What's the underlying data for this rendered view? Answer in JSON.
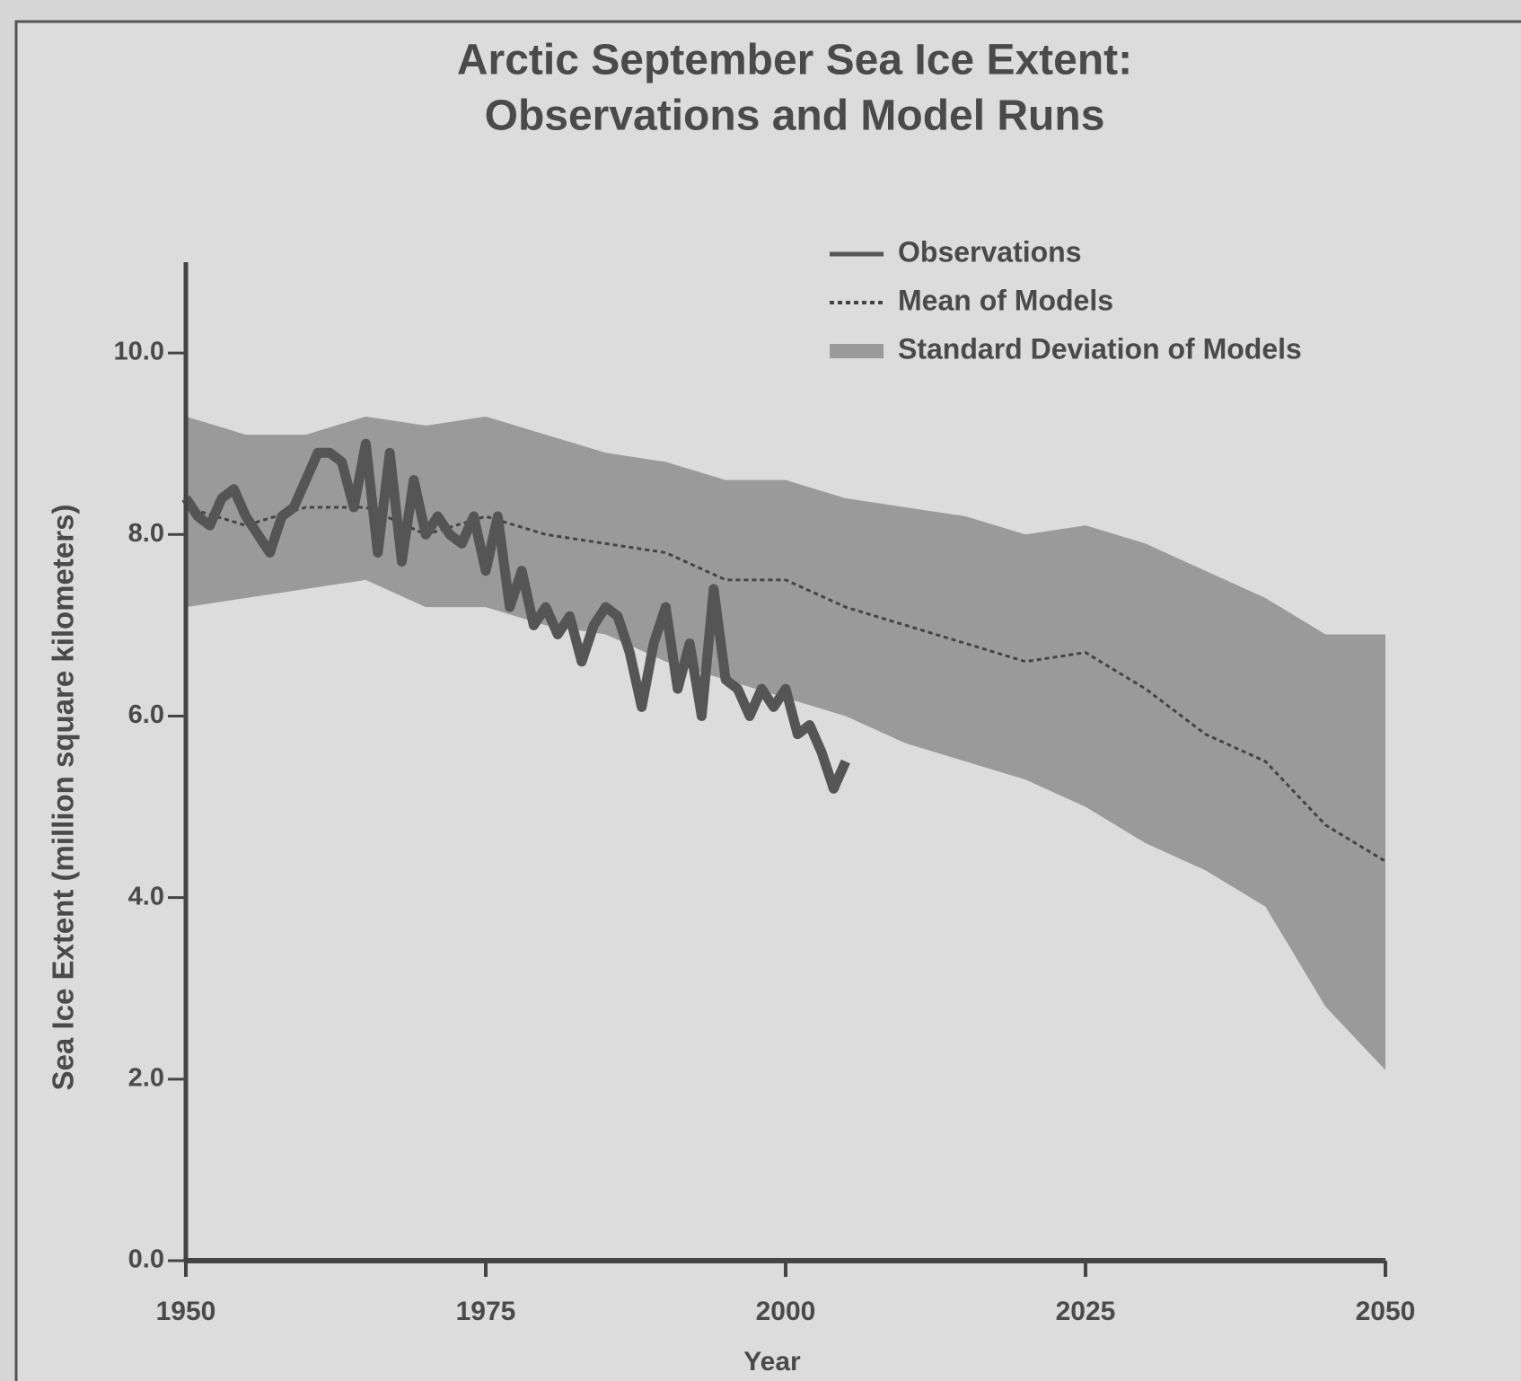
{
  "chart_data": {
    "type": "line",
    "title": [
      "Arctic September Sea Ice Extent:",
      "Observations and Model Runs"
    ],
    "x_label": "Year",
    "y_label": "Sea Ice Extent (million square kilometers)",
    "xlim": [
      1950,
      2050
    ],
    "xticks": [
      1950,
      1975,
      2000,
      2025,
      2050
    ],
    "ylim": [
      0,
      11
    ],
    "yticks": [
      {
        "value": 0,
        "label": "0.0"
      },
      {
        "value": 2,
        "label": "2.0"
      },
      {
        "value": 4,
        "label": "4.0"
      },
      {
        "value": 6,
        "label": "6.0"
      },
      {
        "value": 8,
        "label": "8.0"
      },
      {
        "value": 10,
        "label": "10.0"
      }
    ],
    "series": [
      {
        "name": "Observations",
        "color": "#555555",
        "x": [
          1950,
          1951,
          1952,
          1953,
          1954,
          1955,
          1956,
          1957,
          1958,
          1959,
          1960,
          1961,
          1962,
          1963,
          1964,
          1965,
          1966,
          1967,
          1968,
          1969,
          1970,
          1971,
          1972,
          1973,
          1974,
          1975,
          1976,
          1977,
          1978,
          1979,
          1980,
          1981,
          1982,
          1983,
          1984,
          1985,
          1986,
          1987,
          1988,
          1989,
          1990,
          1991,
          1992,
          1993,
          1994,
          1995,
          1996,
          1997,
          1998,
          1999,
          2000,
          2001,
          2002,
          2003,
          2004,
          2005
        ],
        "values": [
          8.4,
          8.2,
          8.1,
          8.4,
          8.5,
          8.2,
          8.0,
          7.8,
          8.2,
          8.3,
          8.6,
          8.9,
          8.9,
          8.8,
          8.3,
          9.0,
          7.8,
          8.9,
          7.7,
          8.6,
          8.0,
          8.2,
          8.0,
          7.9,
          8.2,
          7.6,
          8.2,
          7.2,
          7.6,
          7.0,
          7.2,
          6.9,
          7.1,
          6.6,
          7.0,
          7.2,
          7.1,
          6.7,
          6.1,
          6.8,
          7.2,
          6.3,
          6.8,
          6.0,
          7.4,
          6.4,
          6.3,
          6.0,
          6.3,
          6.1,
          6.3,
          5.8,
          5.9,
          5.6,
          5.2,
          5.5
        ]
      },
      {
        "name": "Mean of Models",
        "color": "#444444",
        "x": [
          1950,
          1955,
          1960,
          1965,
          1970,
          1975,
          1980,
          1985,
          1990,
          1995,
          2000,
          2005,
          2010,
          2015,
          2020,
          2025,
          2030,
          2035,
          2040,
          2045,
          2050
        ],
        "values": [
          8.3,
          8.1,
          8.3,
          8.3,
          8.0,
          8.2,
          8.0,
          7.9,
          7.8,
          7.5,
          7.5,
          7.2,
          7.0,
          6.8,
          6.6,
          6.7,
          6.3,
          5.8,
          5.5,
          4.8,
          4.4
        ]
      },
      {
        "name": "Standard Deviation of Models",
        "color": "#9a9a9a",
        "x": [
          1950,
          1955,
          1960,
          1965,
          1970,
          1975,
          1980,
          1985,
          1990,
          1995,
          2000,
          2005,
          2010,
          2015,
          2020,
          2025,
          2030,
          2035,
          2040,
          2045,
          2050
        ],
        "upper": [
          9.3,
          9.1,
          9.1,
          9.3,
          9.2,
          9.3,
          9.1,
          8.9,
          8.8,
          8.6,
          8.6,
          8.4,
          8.3,
          8.2,
          8.0,
          8.1,
          7.9,
          7.6,
          7.3,
          6.9,
          6.9
        ],
        "lower": [
          7.2,
          7.3,
          7.4,
          7.5,
          7.2,
          7.2,
          7.0,
          6.9,
          6.6,
          6.4,
          6.2,
          6.0,
          5.7,
          5.5,
          5.3,
          5.0,
          4.6,
          4.3,
          3.9,
          2.8,
          2.1
        ]
      }
    ]
  }
}
